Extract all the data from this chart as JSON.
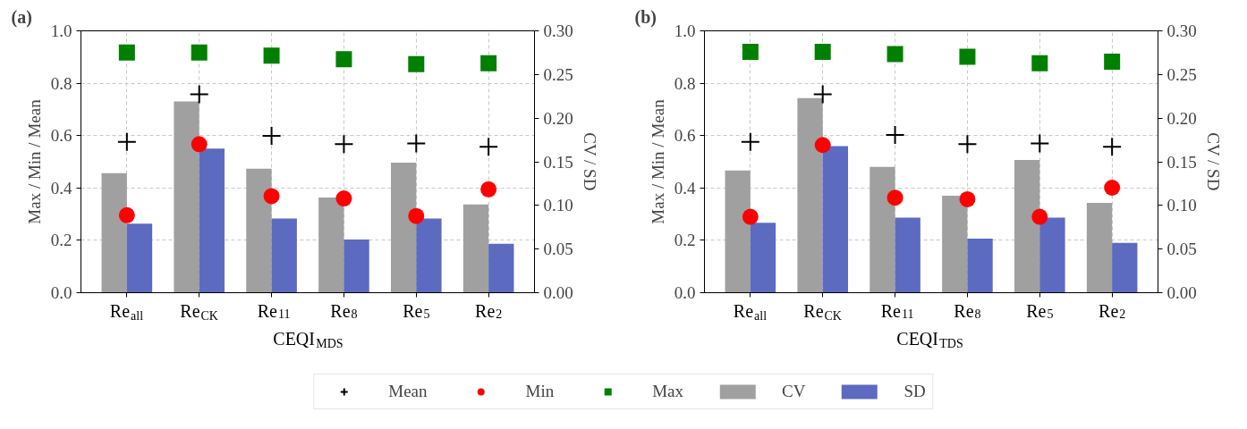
{
  "chart_data": [
    {
      "type": "bar",
      "title": "(a)",
      "xlabel": "CEQI$_{MDS}$",
      "ylabel": "Max / Min / Mean",
      "y2label": "CV / SD",
      "categories": [
        "Re$_{all}$",
        "Re$_{CK}$",
        "Re$_{11}$",
        "Re$_{8}$",
        "Re$_{5}$",
        "Re$_{2}$"
      ],
      "series": [
        {
          "name": "Mean",
          "type": "scatter",
          "marker": "cross",
          "color": "#000000",
          "values": [
            0.576,
            0.758,
            0.599,
            0.567,
            0.57,
            0.557
          ]
        },
        {
          "name": "Min",
          "type": "scatter",
          "marker": "circle",
          "color": "#ff0000",
          "values": [
            0.296,
            0.567,
            0.369,
            0.36,
            0.293,
            0.395
          ]
        },
        {
          "name": "Max",
          "type": "scatter",
          "marker": "square",
          "color": "#008000",
          "values": [
            0.917,
            0.917,
            0.905,
            0.892,
            0.873,
            0.876
          ]
        },
        {
          "name": "CV",
          "axis": "y2",
          "color": "#a0a0a0",
          "values": [
            0.137,
            0.219,
            0.142,
            0.109,
            0.149,
            0.101
          ]
        },
        {
          "name": "SD",
          "axis": "y2",
          "color": "#5c6bc0",
          "values": [
            0.079,
            0.165,
            0.085,
            0.061,
            0.085,
            0.056
          ]
        }
      ],
      "ylim": [
        0,
        1
      ],
      "yticks": [
        {
          "value": 0,
          "label": "0.0"
        },
        {
          "value": 0.2,
          "label": "0.2"
        },
        {
          "value": 0.4,
          "label": "0.4"
        },
        {
          "value": 0.6,
          "label": "0.6"
        },
        {
          "value": 0.8,
          "label": "0.8"
        },
        {
          "value": 1,
          "label": "1.0"
        }
      ],
      "y2lim": [
        0,
        0.3
      ],
      "y2ticks": [
        {
          "value": 0,
          "label": "0.00"
        },
        {
          "value": 0.05,
          "label": "0.05"
        },
        {
          "value": 0.1,
          "label": "0.10"
        },
        {
          "value": 0.15,
          "label": "0.15"
        },
        {
          "value": 0.2,
          "label": "0.20"
        },
        {
          "value": 0.25,
          "label": "0.25"
        },
        {
          "value": 0.3,
          "label": "0.30"
        }
      ],
      "grid": true,
      "legend": "bottom"
    },
    {
      "type": "bar",
      "title": "(b)",
      "xlabel": "CEQI$_{TDS}$",
      "ylabel": "Max / Min / Mean",
      "y2label": "CV / SD",
      "categories": [
        "Re$_{all}$",
        "Re$_{CK}$",
        "Re$_{11}$",
        "Re$_{8}$",
        "Re$_{5}$",
        "Re$_{2}$"
      ],
      "series": [
        {
          "type": "scatter",
          "marker": "cross",
          "color": "#000000",
          "values": [
            0.576,
            0.758,
            0.602,
            0.567,
            0.57,
            0.557
          ]
        },
        {
          "type": "scatter",
          "marker": "circle",
          "color": "#ff0000",
          "values": [
            0.29,
            0.564,
            0.363,
            0.357,
            0.29,
            0.401
          ]
        },
        {
          "type": "scatter",
          "marker": "square",
          "color": "#008000",
          "values": [
            0.92,
            0.92,
            0.911,
            0.901,
            0.876,
            0.882
          ]
        },
        {
          "axis": "y2",
          "color": "#a0a0a0",
          "values": [
            0.14,
            0.223,
            0.144,
            0.111,
            0.152,
            0.103
          ]
        },
        {
          "axis": "y2",
          "color": "#5c6bc0",
          "values": [
            0.08,
            0.168,
            0.086,
            0.062,
            0.086,
            0.057
          ]
        }
      ],
      "ylim": [
        0,
        1
      ],
      "yticks": [
        {
          "value": 0,
          "label": "0.0"
        },
        {
          "value": 0.2,
          "label": "0.2"
        },
        {
          "value": 0.4,
          "label": "0.4"
        },
        {
          "value": 0.6,
          "label": "0.6"
        },
        {
          "value": 0.8,
          "label": "0.8"
        },
        {
          "value": 1,
          "label": "1.0"
        }
      ],
      "y2lim": [
        0,
        0.3
      ],
      "y2ticks": [
        {
          "value": 0,
          "label": "0.00"
        },
        {
          "value": 0.05,
          "label": "0.05"
        },
        {
          "value": 0.1,
          "label": "0.10"
        },
        {
          "value": 0.15,
          "label": "0.15"
        },
        {
          "value": 0.2,
          "label": "0.20"
        },
        {
          "value": 0.25,
          "label": "0.25"
        },
        {
          "value": 0.3,
          "label": "0.30"
        }
      ],
      "grid": true
    }
  ]
}
